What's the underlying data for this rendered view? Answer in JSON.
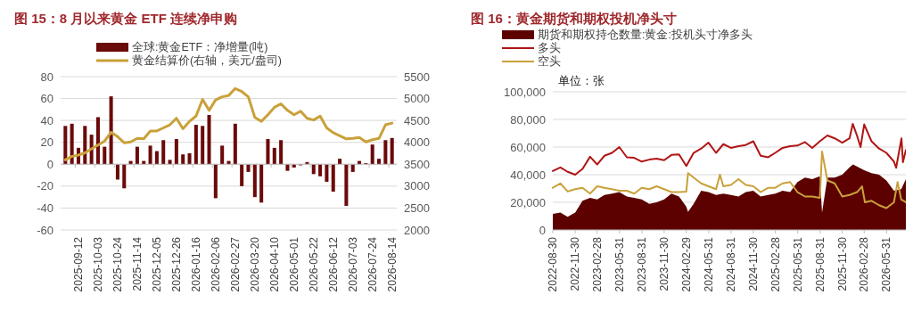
{
  "chart_data": [
    {
      "type": "bar",
      "title": "图 15：8 月以来黄金 ETF 连续净申购",
      "categories": [
        null,
        null,
        "2025-09-12",
        null,
        null,
        "2025-10-03",
        null,
        null,
        "2025-10-24",
        null,
        null,
        "2025-11-14",
        null,
        null,
        "2025-12-05",
        null,
        null,
        "2025-12-26",
        null,
        null,
        "2026-01-16",
        null,
        null,
        "2026-02-06",
        null,
        null,
        "2026-02-27",
        null,
        null,
        "2026-03-20",
        null,
        null,
        "2026-04-10",
        null,
        null,
        "2026-05-01",
        null,
        null,
        "2026-05-22",
        null,
        null,
        "2026-06-12",
        null,
        null,
        "2026-07-03",
        null,
        null,
        "2026-07-24",
        null,
        null,
        "2026-08-14"
      ],
      "series": [
        {
          "name": "全球:黄金ETF：净增量(吨)",
          "color": "#6b0a0a",
          "values": [
            35,
            37,
            15,
            35,
            27,
            43,
            16,
            62,
            -14,
            -22,
            3,
            16,
            3,
            17,
            12,
            22,
            4,
            23,
            9,
            10,
            36,
            35,
            45,
            -31,
            17,
            3,
            37,
            -20,
            -7,
            -30,
            -35,
            23,
            15,
            22,
            -6,
            -3,
            -1,
            2,
            -9,
            -11,
            -16,
            -25,
            5,
            -38,
            -7,
            3,
            1,
            18,
            5,
            22,
            24
          ]
        },
        {
          "name": "黄金结算价(右轴，美元/盎司)",
          "type": "line",
          "axis": "y2",
          "color": "#c9a13a",
          "values": [
            3600,
            3680,
            3710,
            3760,
            3850,
            3940,
            4030,
            4230,
            4130,
            3990,
            4010,
            4090,
            4080,
            4260,
            4260,
            4330,
            4400,
            4550,
            4310,
            4480,
            4600,
            4980,
            4730,
            4970,
            5040,
            5070,
            5230,
            5160,
            5040,
            4570,
            4480,
            4630,
            4800,
            4880,
            4730,
            4630,
            4710,
            4550,
            4510,
            4600,
            4330,
            4220,
            4150,
            4080,
            4090,
            4110,
            4010,
            4060,
            4090,
            4400,
            4440
          ]
        }
      ],
      "ylim": [
        -60,
        80
      ],
      "yticks": [
        -60,
        -40,
        -20,
        0,
        20,
        40,
        60,
        80
      ],
      "y2lim": [
        2000,
        5500
      ],
      "y2ticks": [
        2000,
        2500,
        3000,
        3500,
        4000,
        4500,
        5000,
        5500
      ],
      "grid": "y",
      "legend": "top"
    },
    {
      "type": "line",
      "title": "图 16：黄金期货和期权投机净头寸",
      "series": [
        {
          "name": "期货和期权持仓数量:黄金:投机头寸净多头",
          "type": "area",
          "color": "#5c0000",
          "x": [
            "2022-08-30",
            "2022-09-30",
            "2022-10-30",
            "2022-11-30",
            "2022-12-30",
            "2023-01-30",
            "2023-02-28",
            "2023-03-30",
            "2023-04-30",
            "2023-05-30",
            "2023-06-30",
            "2023-07-30",
            "2023-08-30",
            "2023-09-30",
            "2023-10-30",
            "2023-11-30",
            "2023-12-30",
            "2024-01-30",
            "2024-02-29",
            "2024-03-07",
            "2024-03-30",
            "2024-04-30",
            "2024-05-30",
            "2024-06-30",
            "2024-07-30",
            "2024-08-30",
            "2024-09-30",
            "2024-10-30",
            "2024-11-30",
            "2024-12-30",
            "2025-01-30",
            "2025-02-28",
            "2025-03-30",
            "2025-04-30",
            "2025-05-30",
            "2025-06-30",
            "2025-07-30",
            "2025-08-30",
            "2025-09-08",
            "2025-09-30",
            "2025-10-30",
            "2025-11-30",
            "2025-12-30",
            "2026-01-13",
            "2026-02-28",
            "2026-03-30",
            "2026-04-30",
            "2026-05-30",
            "2026-06-30",
            "2026-07-30",
            "2026-08-18"
          ],
          "values": [
            11600,
            12600,
            9500,
            12600,
            21100,
            23200,
            22100,
            25300,
            26300,
            27400,
            24200,
            23200,
            22100,
            18900,
            20000,
            22100,
            26300,
            24200,
            16800,
            13100,
            18900,
            28400,
            27400,
            25300,
            26300,
            25300,
            24200,
            27400,
            28400,
            24200,
            25300,
            26300,
            28400,
            27400,
            34700,
            37900,
            36800,
            38900,
            12600,
            37900,
            37900,
            40000,
            45300,
            47400,
            43200,
            41100,
            40000,
            35800,
            28400,
            29500,
            36800
          ]
        },
        {
          "name": "多头",
          "color": "#b01515",
          "x": [
            "2022-08-30",
            "2022-09-30",
            "2022-10-30",
            "2022-11-30",
            "2022-12-30",
            "2023-01-30",
            "2023-02-28",
            "2023-03-30",
            "2023-04-30",
            "2023-05-30",
            "2023-06-30",
            "2023-07-30",
            "2023-08-30",
            "2023-09-30",
            "2023-10-30",
            "2023-11-30",
            "2023-12-30",
            "2024-01-30",
            "2024-02-29",
            "2024-03-30",
            "2024-04-30",
            "2024-05-30",
            "2024-06-30",
            "2024-07-30",
            "2024-08-30",
            "2024-09-30",
            "2024-10-30",
            "2024-11-30",
            "2024-12-30",
            "2025-01-30",
            "2025-02-28",
            "2025-03-30",
            "2025-04-30",
            "2025-05-30",
            "2025-06-30",
            "2025-07-30",
            "2025-08-30",
            "2025-09-30",
            "2025-10-30",
            "2025-11-30",
            "2025-12-30",
            "2026-01-12",
            "2026-01-30",
            "2026-02-13",
            "2026-02-28",
            "2026-03-30",
            "2026-04-30",
            "2026-05-30",
            "2026-06-30",
            "2026-07-09",
            "2026-07-31",
            "2026-08-06",
            "2026-08-18"
          ],
          "values": [
            42700,
            45300,
            42100,
            40000,
            44200,
            53000,
            47400,
            53700,
            55800,
            60000,
            52600,
            52200,
            49500,
            50900,
            51600,
            50500,
            54300,
            54700,
            46300,
            55800,
            58900,
            63200,
            55800,
            62100,
            59400,
            60600,
            61500,
            64200,
            53700,
            52600,
            55800,
            59400,
            60600,
            61100,
            63600,
            59400,
            64200,
            68400,
            66300,
            63200,
            66300,
            76800,
            68000,
            60000,
            76400,
            64200,
            58900,
            55800,
            49500,
            45000,
            66300,
            49000,
            57900
          ]
        },
        {
          "name": "空头",
          "color": "#c9a13a",
          "x": [
            "2022-08-30",
            "2022-09-30",
            "2022-10-30",
            "2022-11-30",
            "2022-12-30",
            "2023-01-30",
            "2023-02-28",
            "2023-03-30",
            "2023-04-30",
            "2023-05-30",
            "2023-06-30",
            "2023-07-30",
            "2023-08-30",
            "2023-09-30",
            "2023-10-30",
            "2023-11-30",
            "2023-12-30",
            "2024-01-30",
            "2024-02-29",
            "2024-03-07",
            "2024-03-30",
            "2024-04-30",
            "2024-05-30",
            "2024-06-30",
            "2024-07-16",
            "2024-07-30",
            "2024-08-30",
            "2024-09-30",
            "2024-10-30",
            "2024-11-30",
            "2024-12-30",
            "2025-01-30",
            "2025-02-28",
            "2025-03-30",
            "2025-04-30",
            "2025-05-30",
            "2025-06-30",
            "2025-07-30",
            "2025-08-30",
            "2025-09-08",
            "2025-09-30",
            "2025-10-30",
            "2025-11-30",
            "2025-12-30",
            "2026-01-30",
            "2026-02-19",
            "2026-03-03",
            "2026-03-30",
            "2026-04-30",
            "2026-05-30",
            "2026-06-30",
            "2026-07-15",
            "2026-07-30",
            "2026-08-18"
          ],
          "values": [
            30500,
            33700,
            27800,
            29500,
            30500,
            26300,
            31600,
            30500,
            29500,
            28400,
            28400,
            26300,
            30500,
            29500,
            31600,
            29500,
            27400,
            27400,
            27800,
            41100,
            37900,
            33700,
            31600,
            29500,
            40000,
            31600,
            32600,
            36800,
            32600,
            31600,
            27400,
            30500,
            30500,
            33700,
            34700,
            27400,
            24200,
            24200,
            23200,
            56800,
            35800,
            33700,
            24200,
            25300,
            27400,
            31600,
            20000,
            21100,
            17900,
            15800,
            20000,
            34700,
            22000,
            20000
          ]
        }
      ],
      "xlim": [
        "2022-08-30",
        "2026-08-18"
      ],
      "xticks": [
        "2022-08-30",
        "2022-11-30",
        "2023-02-28",
        "2023-05-31",
        "2023-08-31",
        "2023-11-30",
        "2024-02-29",
        "2024-05-31",
        "2024-08-31",
        "2024-11-30",
        "2025-02-28",
        "2025-05-31",
        "2025-08-31",
        "2025-11-30",
        "2026-02-28",
        "2026-05-31"
      ],
      "ylim": [
        0,
        100000
      ],
      "yticks": [
        0,
        {
          "value": 20000,
          "label": "20,000"
        },
        {
          "value": 40000,
          "label": "40,000"
        },
        {
          "value": 60000,
          "label": "60,000"
        },
        {
          "value": 80000,
          "label": "80,000"
        },
        {
          "value": 100000,
          "label": "100,000"
        }
      ],
      "annotations": [
        "单位：张"
      ],
      "grid": "y",
      "legend": "top left"
    }
  ]
}
